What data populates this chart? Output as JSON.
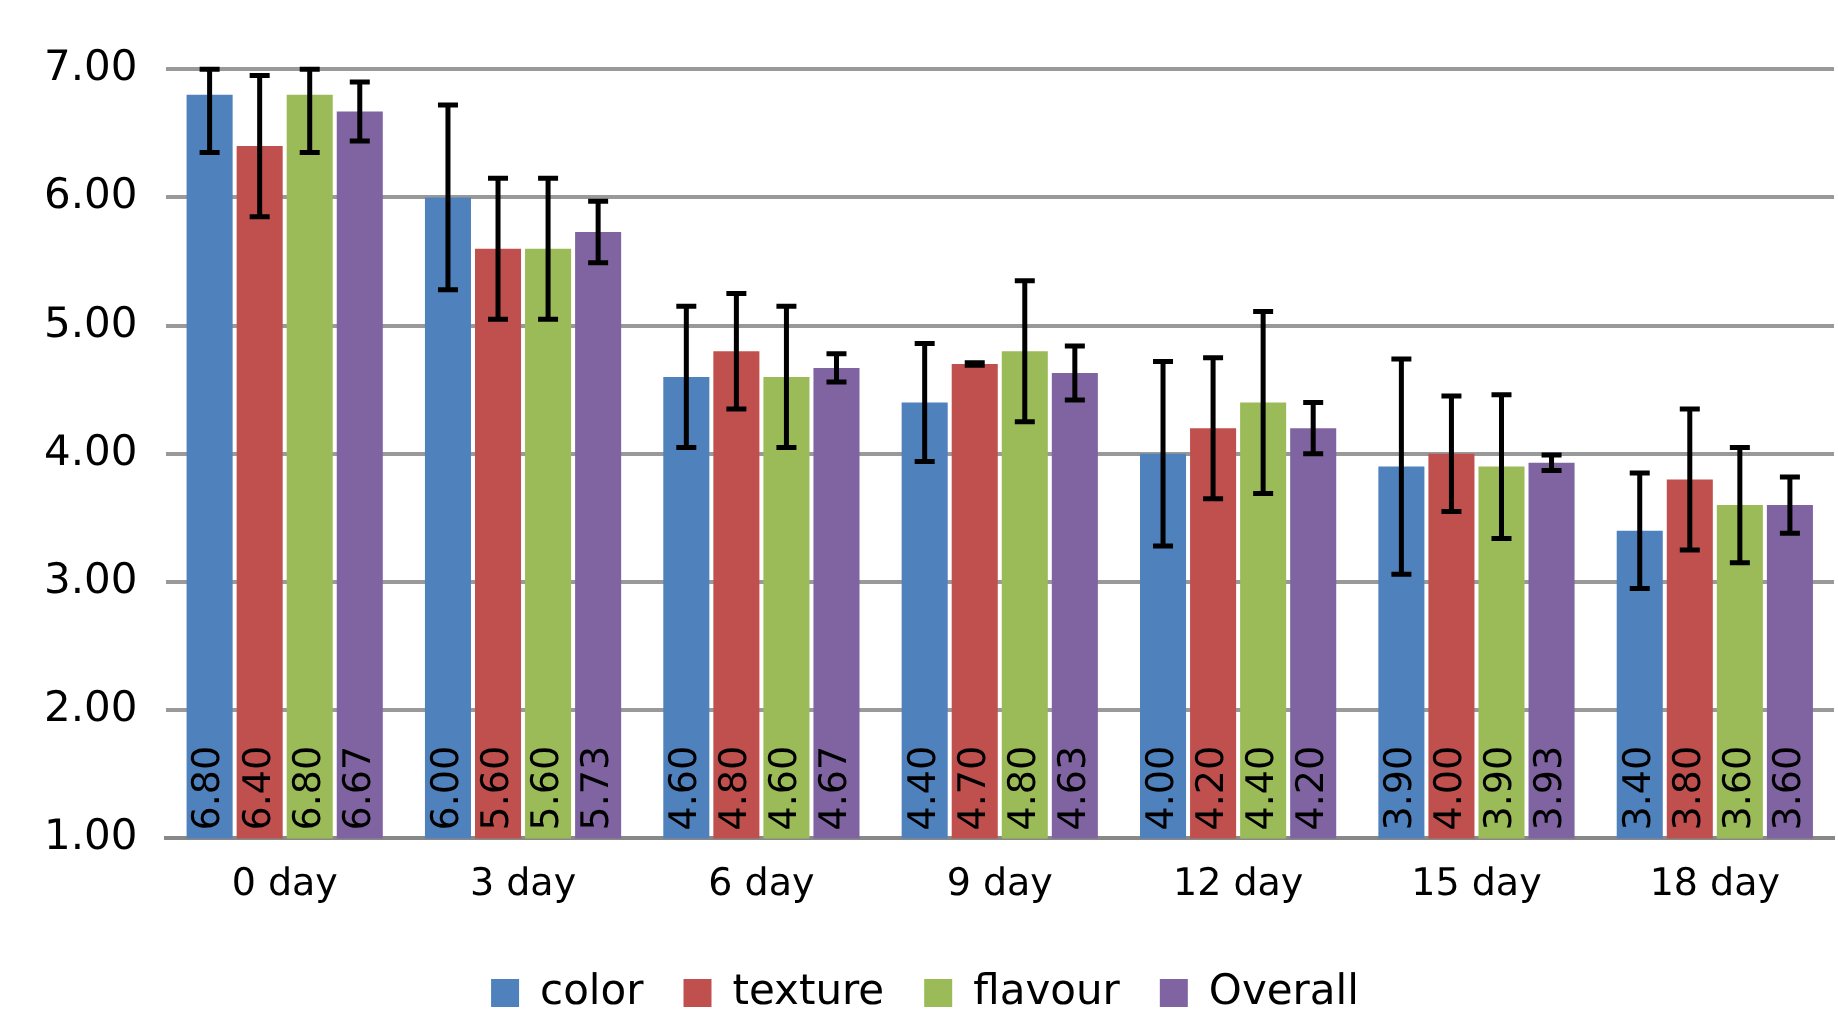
{
  "chart_data": {
    "type": "bar",
    "categories": [
      "0 day",
      "3 day",
      "6 day",
      "9 day",
      "12 day",
      "15 day",
      "18 day"
    ],
    "series": [
      {
        "name": "color",
        "color": "#4f81bd",
        "values": [
          6.8,
          6.0,
          4.6,
          4.4,
          4.0,
          3.9,
          3.4
        ],
        "errors": [
          [
            6.35,
            7.0
          ],
          0.72,
          0.55,
          0.46,
          0.72,
          0.84,
          0.45
        ],
        "value_labels": [
          "6.80",
          "6.00",
          "4.60",
          "4.40",
          "4.00",
          "3.90",
          "3.40"
        ]
      },
      {
        "name": "texture",
        "color": "#c0504d",
        "values": [
          6.4,
          5.6,
          4.8,
          4.7,
          4.2,
          4.0,
          3.8
        ],
        "errors": [
          0.55,
          0.55,
          0.45,
          0.01,
          0.55,
          0.45,
          0.55
        ],
        "value_labels": [
          "6.40",
          "5.60",
          "4.80",
          "4.70",
          "4.20",
          "4.00",
          "3.80"
        ]
      },
      {
        "name": "flavour",
        "color": "#9bbb59",
        "values": [
          6.8,
          5.6,
          4.6,
          4.8,
          4.4,
          3.9,
          3.6
        ],
        "errors": [
          [
            6.35,
            7.0
          ],
          0.55,
          0.55,
          0.55,
          0.71,
          0.56,
          0.45
        ],
        "value_labels": [
          "6.80",
          "5.60",
          "4.60",
          "4.80",
          "4.40",
          "3.90",
          "3.60"
        ]
      },
      {
        "name": "Overall",
        "color": "#8064a2",
        "values": [
          6.67,
          5.73,
          4.67,
          4.63,
          4.2,
          3.93,
          3.6
        ],
        "errors": [
          0.23,
          0.24,
          0.11,
          0.21,
          0.2,
          0.06,
          0.22
        ],
        "value_labels": [
          "6.67",
          "5.73",
          "4.67",
          "4.63",
          "4.20",
          "3.93",
          "3.60"
        ]
      }
    ],
    "ylim": [
      1,
      7
    ],
    "yticks": [
      {
        "value": 1,
        "label": "1.00"
      },
      {
        "value": 2,
        "label": "2.00"
      },
      {
        "value": 3,
        "label": "3.00"
      },
      {
        "value": 4,
        "label": "4.00"
      },
      {
        "value": 5,
        "label": "5.00"
      },
      {
        "value": 6,
        "label": "6.00"
      },
      {
        "value": 7,
        "label": "7.00"
      }
    ],
    "grid": "y",
    "legend": "bottom"
  }
}
